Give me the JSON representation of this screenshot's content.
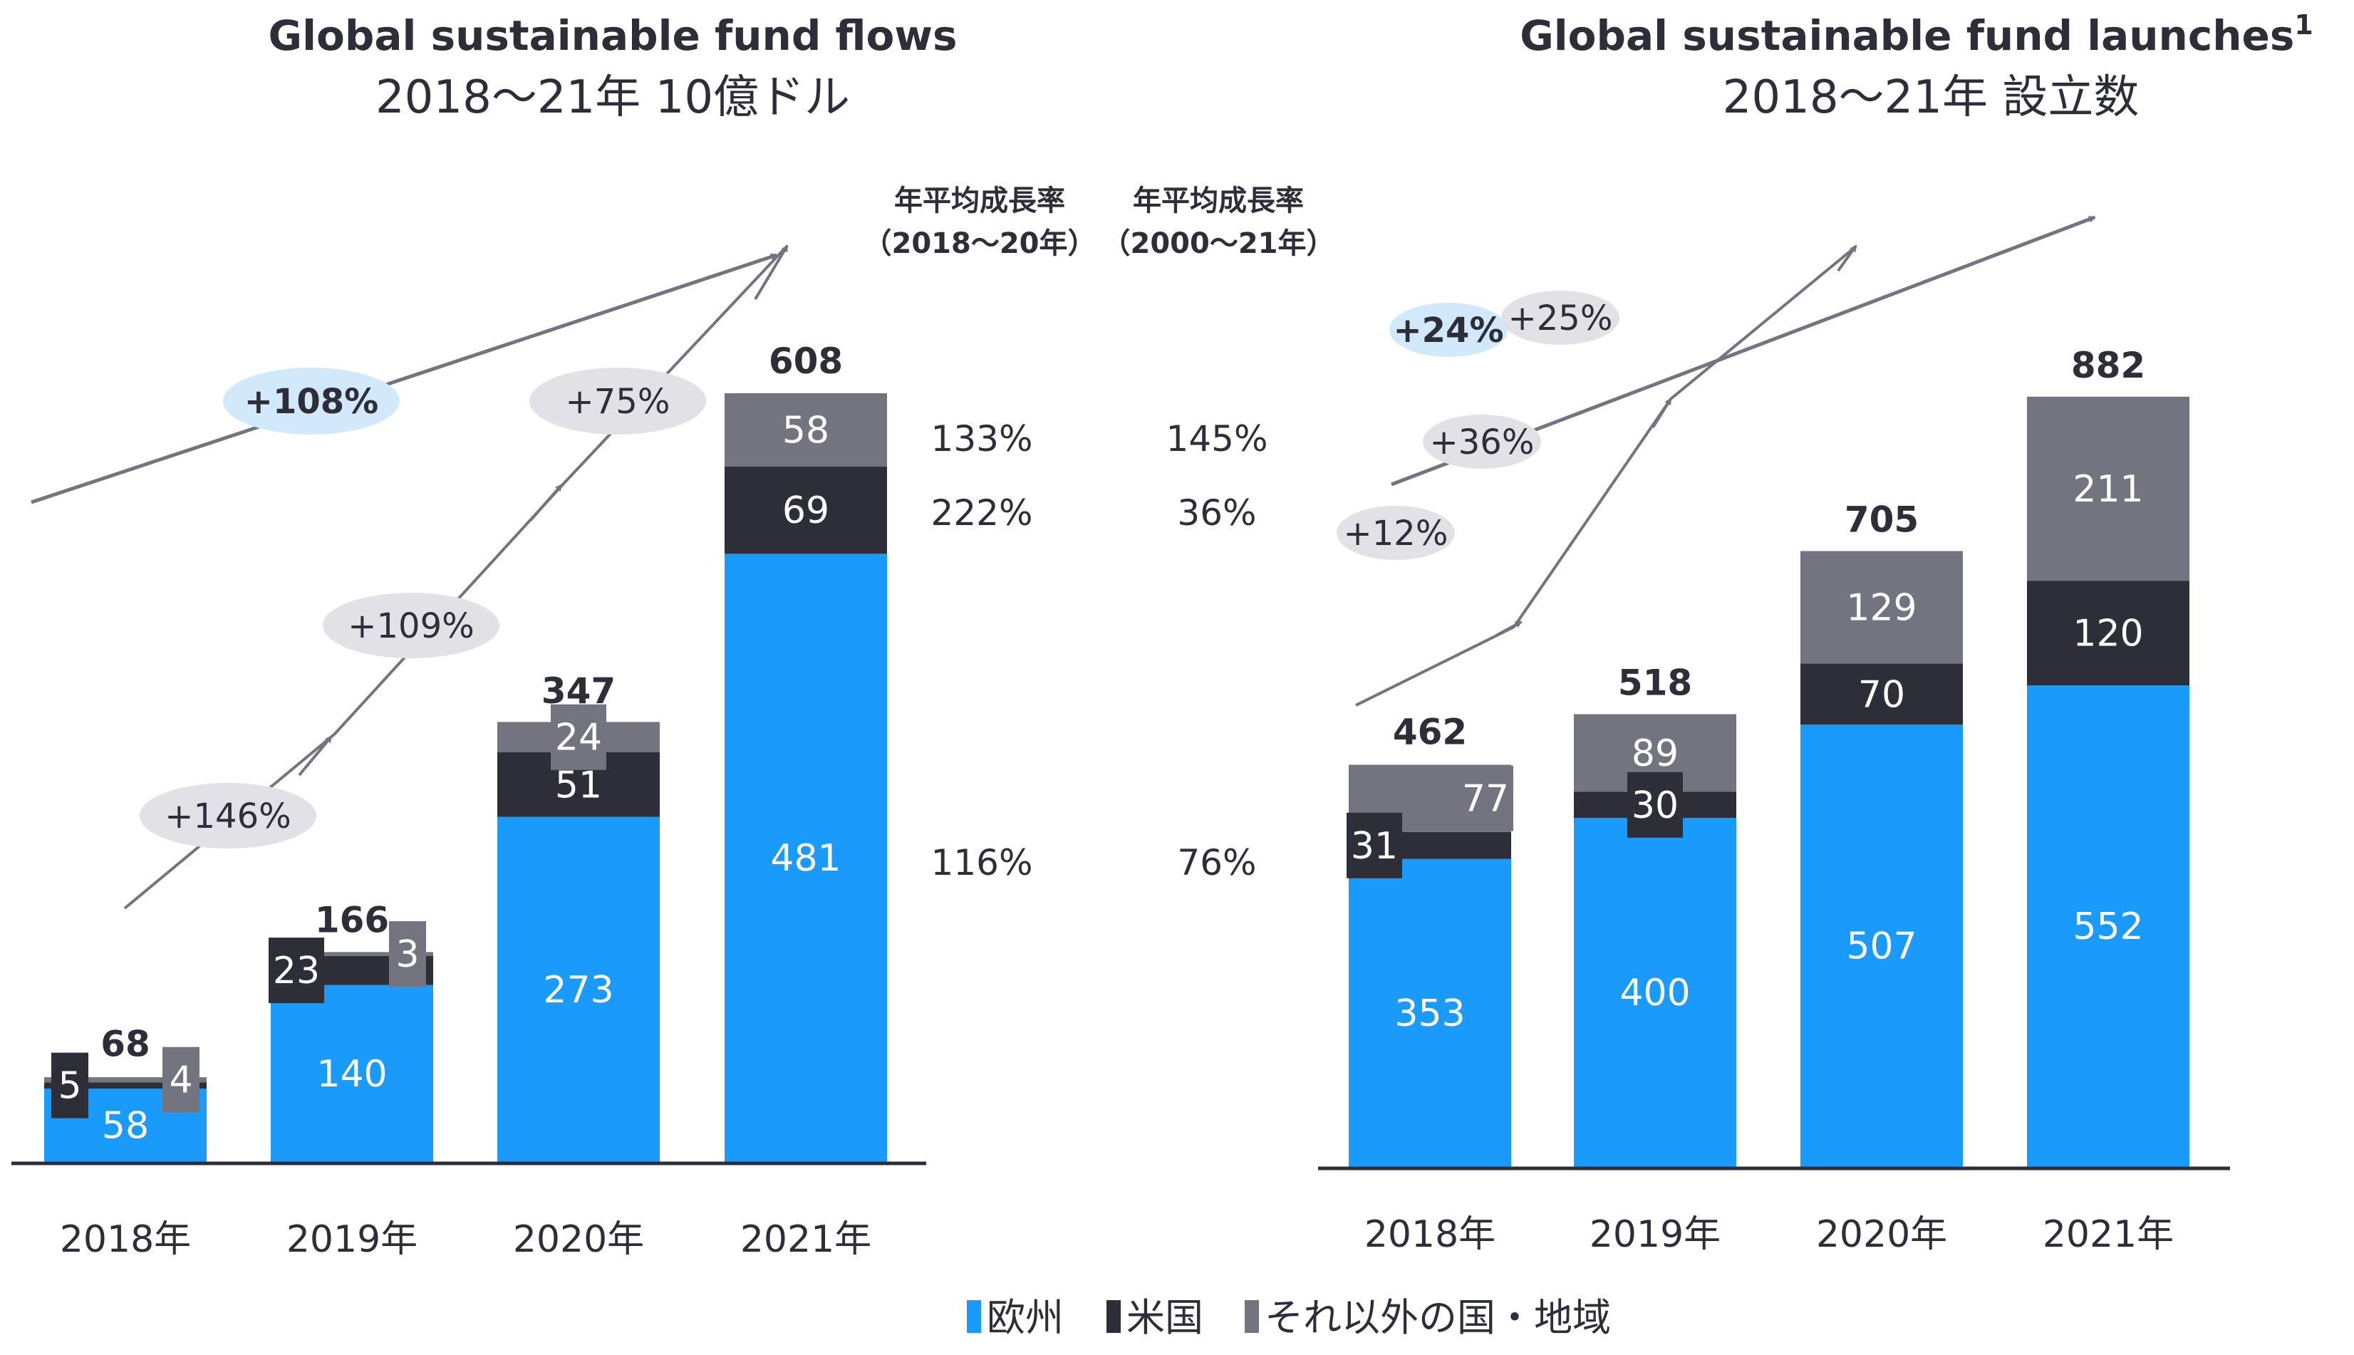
{
  "colors": {
    "europe": "#1a9afa",
    "us": "#2e2e38",
    "other": "#747480",
    "text": "#2e2e38",
    "arrow": "#747480",
    "bubble_highlight": "#d1e9fb",
    "bubble_grey": "#e1e1e6"
  },
  "legend": [
    {
      "key": "europe",
      "label": "欧州"
    },
    {
      "key": "us",
      "label": "米国"
    },
    {
      "key": "other",
      "label": "それ以外の国・地域"
    }
  ],
  "cagr_headers": {
    "col1_line1": "年平均成長率",
    "col1_line2": "（2018〜20年）",
    "col2_line1": "年平均成長率",
    "col2_line2": "（2000〜21年）"
  },
  "chart_data": [
    {
      "type": "bar",
      "stacked": true,
      "title": "Global sustainable fund flows",
      "subtitle": "2018〜21年 10億ドル",
      "categories": [
        "2018年",
        "2019年",
        "2020年",
        "2021年"
      ],
      "series": [
        {
          "name": "欧州",
          "key": "europe",
          "values": [
            58,
            140,
            273,
            481
          ]
        },
        {
          "name": "米国",
          "key": "us",
          "values": [
            5,
            23,
            51,
            69
          ]
        },
        {
          "name": "それ以外の国・地域",
          "key": "other",
          "values": [
            4,
            3,
            24,
            58
          ]
        }
      ],
      "totals": [
        68,
        166,
        347,
        608
      ],
      "ylim": [
        0,
        608
      ],
      "growth_total": [
        {
          "label": "+108%",
          "highlight": true
        }
      ],
      "growth_yoy": [
        {
          "label": "+146%",
          "highlight": false
        },
        {
          "label": "+109%",
          "highlight": false
        },
        {
          "label": "+75%",
          "highlight": false
        }
      ],
      "cagr_table": [
        {
          "series": "other",
          "cagr_2018_20": "133%",
          "cagr_2000_21": "145%"
        },
        {
          "series": "us",
          "cagr_2018_20": "222%",
          "cagr_2000_21": "36%"
        },
        {
          "series": "europe",
          "cagr_2018_20": "116%",
          "cagr_2000_21": "76%"
        }
      ],
      "xlabel": "",
      "ylabel": "",
      "grid": false,
      "legend": "bottom"
    },
    {
      "type": "bar",
      "stacked": true,
      "title": "Global sustainable fund launches",
      "title_superscript": "1",
      "subtitle": "2018〜21年 設立数",
      "categories": [
        "2018年",
        "2019年",
        "2020年",
        "2021年"
      ],
      "series": [
        {
          "name": "欧州",
          "key": "europe",
          "values": [
            353,
            400,
            507,
            552
          ]
        },
        {
          "name": "米国",
          "key": "us",
          "values": [
            31,
            30,
            70,
            120
          ]
        },
        {
          "name": "それ以外の国・地域",
          "key": "other",
          "values": [
            77,
            89,
            129,
            211
          ]
        }
      ],
      "totals": [
        462,
        518,
        705,
        882
      ],
      "ylim": [
        0,
        882
      ],
      "growth_total": [
        {
          "label": "+24%",
          "highlight": true
        }
      ],
      "growth_yoy": [
        {
          "label": "+12%",
          "highlight": false
        },
        {
          "label": "+36%",
          "highlight": false
        },
        {
          "label": "+25%",
          "highlight": false
        }
      ],
      "xlabel": "",
      "ylabel": "",
      "grid": false,
      "legend": "bottom"
    }
  ]
}
